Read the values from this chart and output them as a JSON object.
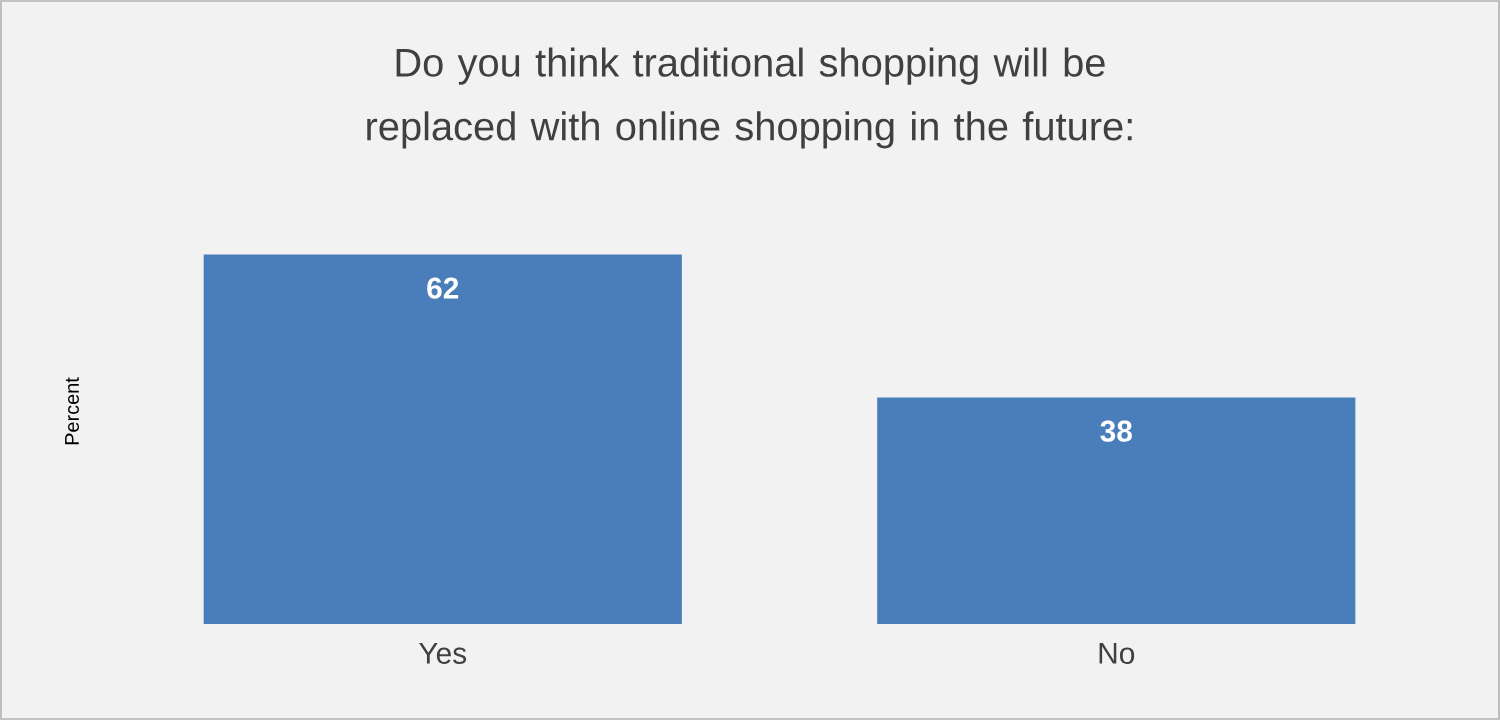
{
  "chart_data": {
    "type": "bar",
    "title": "Do you think traditional shopping will be replaced with online shopping in the future:",
    "ylabel": "Percent",
    "categories": [
      "Yes",
      "No"
    ],
    "values": [
      62,
      38
    ],
    "color": "#4a7ebb",
    "data_labels": true
  }
}
